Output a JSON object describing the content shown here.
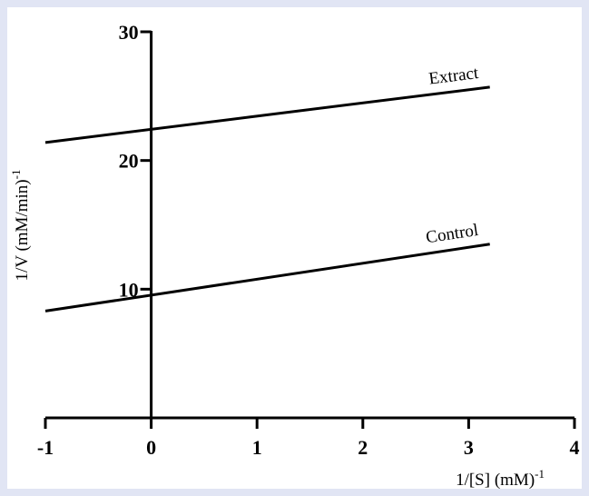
{
  "chart_data": {
    "type": "line",
    "title": "",
    "xlabel": "1/[S] (mM)",
    "xlabel_sup": "-1",
    "ylabel": "1/V (mM/min)",
    "ylabel_sup": "-1",
    "xlim": [
      -1,
      4
    ],
    "ylim": [
      0,
      30
    ],
    "x_ticks": [
      "-1",
      "0",
      "1",
      "2",
      "3",
      "4"
    ],
    "y_ticks": [
      "10",
      "20",
      "30"
    ],
    "grid": false,
    "legend": "none",
    "series": [
      {
        "name": "Extract",
        "x": [
          -1,
          3.2
        ],
        "y": [
          21.4,
          25.7
        ]
      },
      {
        "name": "Control",
        "x": [
          -1,
          3.2
        ],
        "y": [
          8.3,
          13.5
        ]
      }
    ]
  }
}
